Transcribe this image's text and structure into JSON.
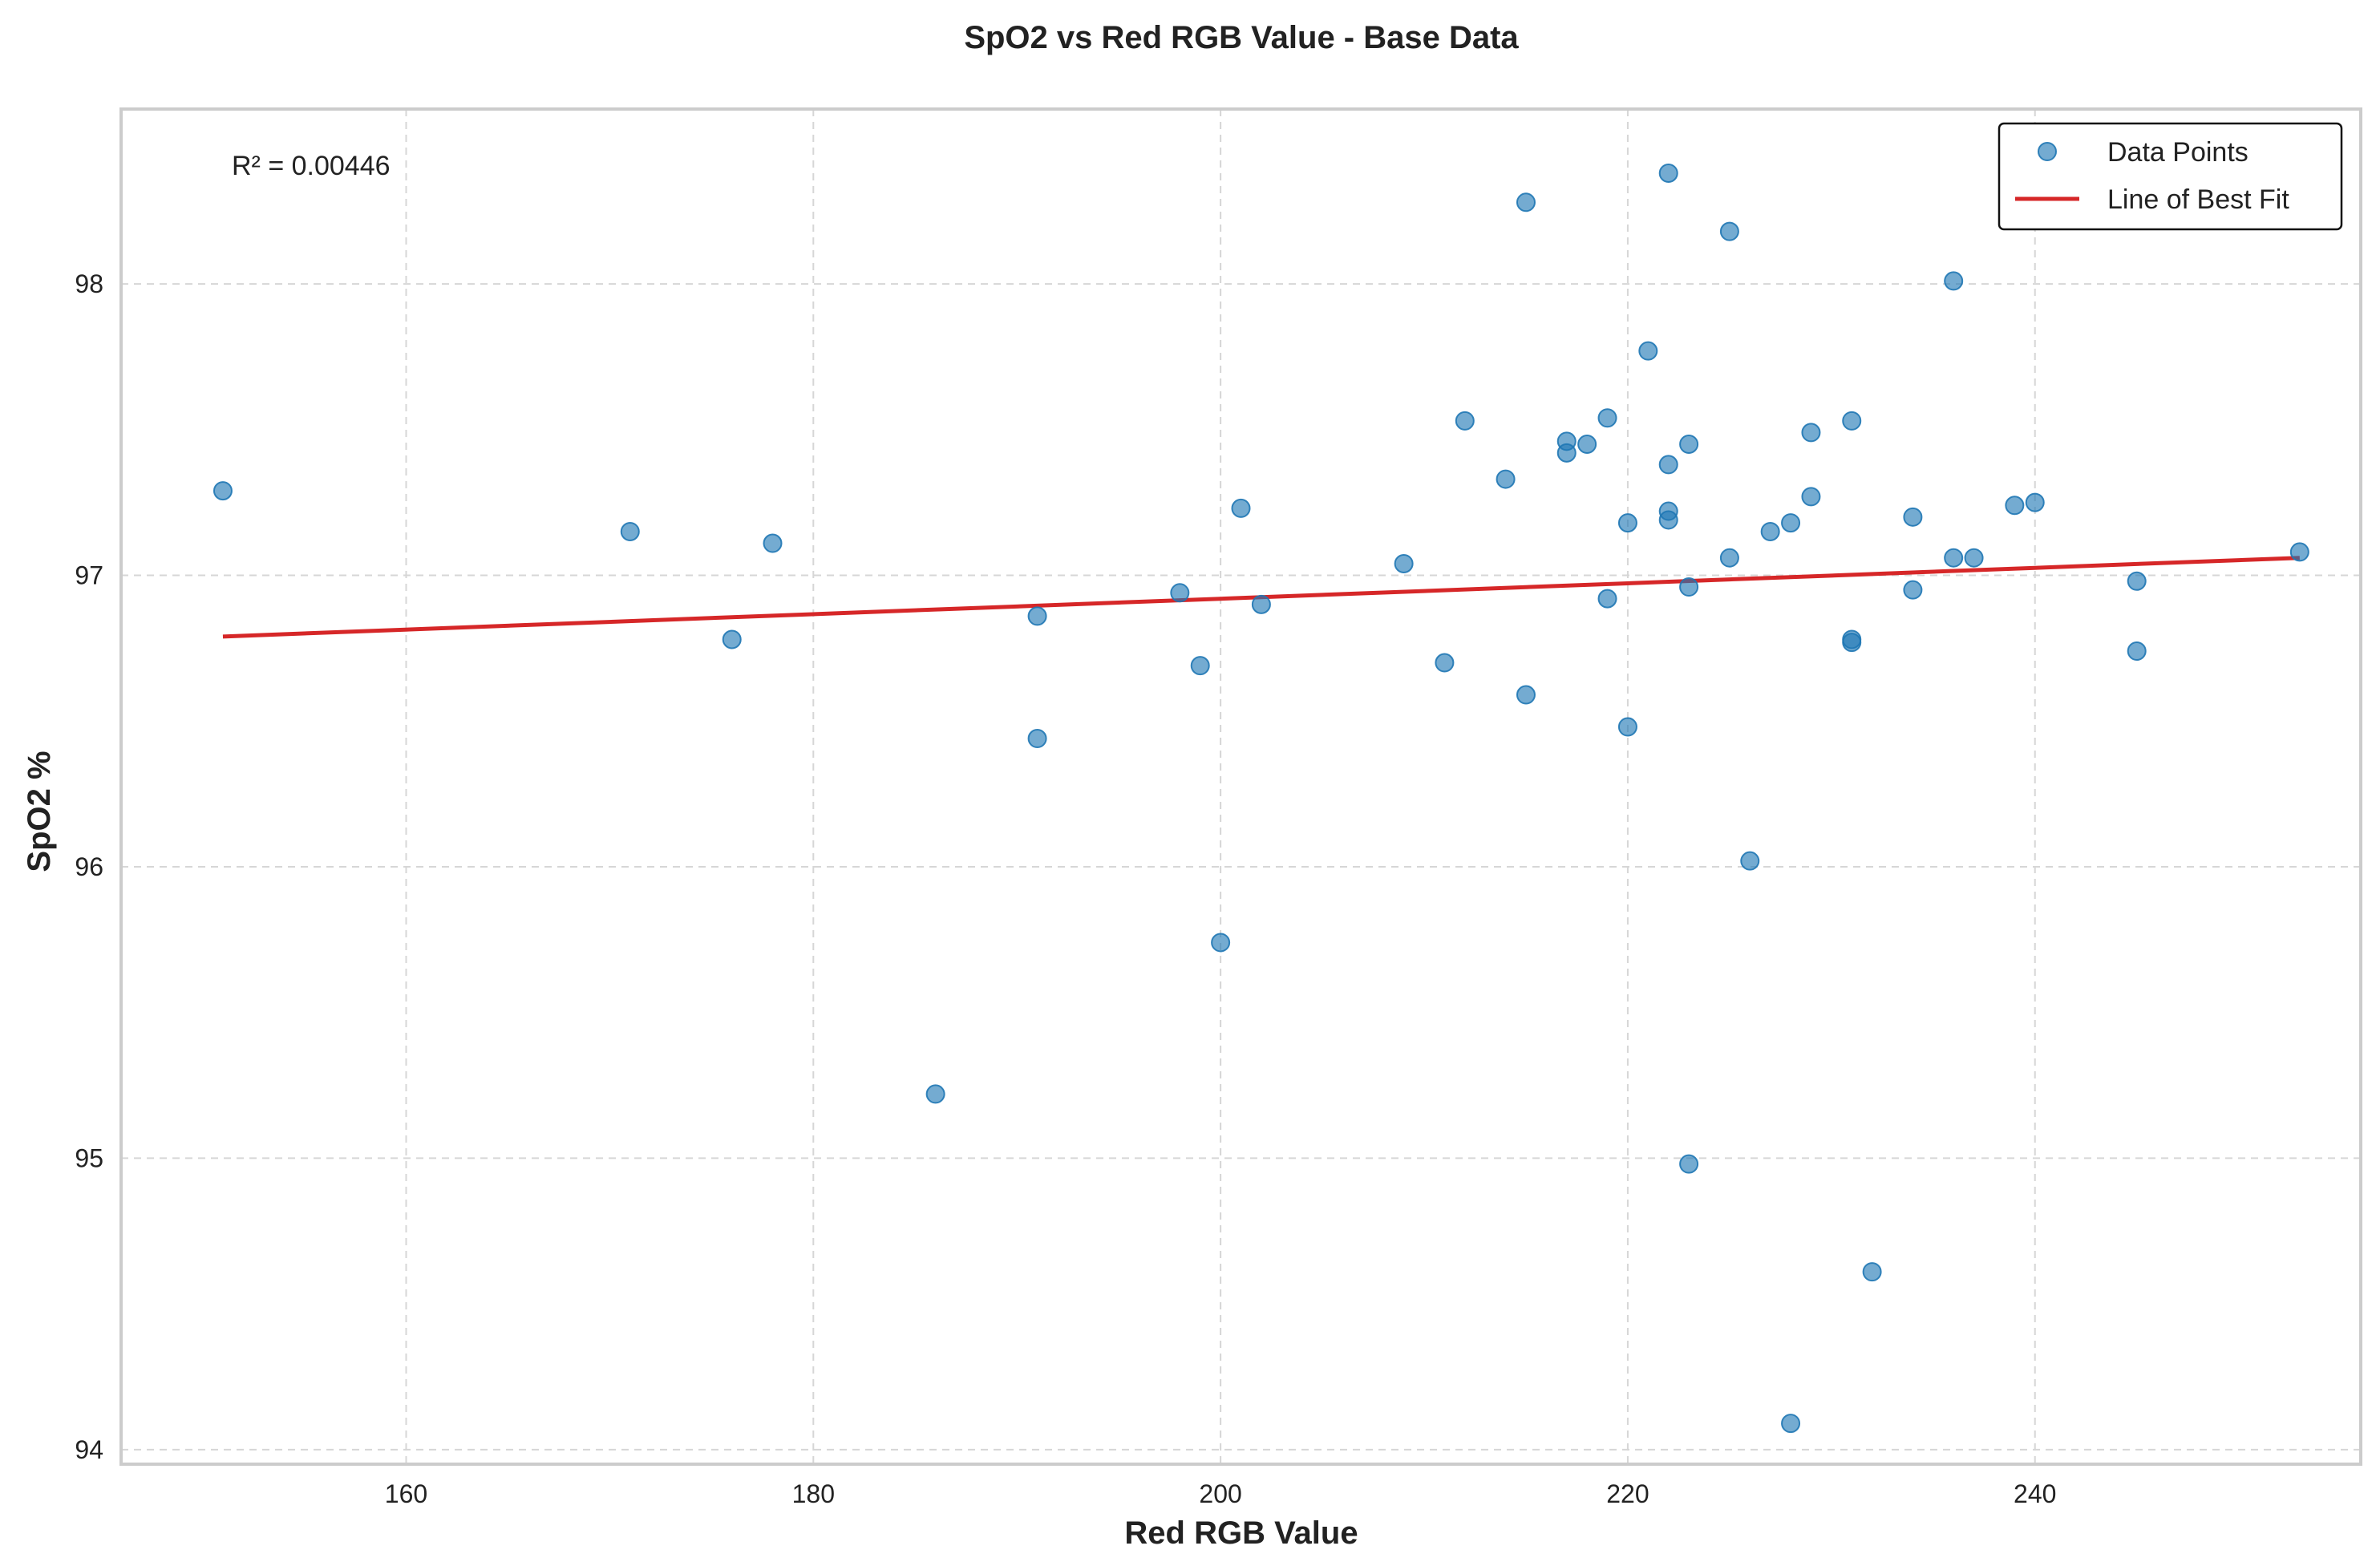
{
  "chart_data": {
    "type": "scatter",
    "title": "SpO2 vs Red RGB Value - Base Data",
    "xlabel": "Red RGB Value",
    "ylabel": "SpO2 %",
    "xlim": [
      146,
      256
    ],
    "ylim": [
      93.95,
      98.6
    ],
    "xticks": [
      160,
      180,
      200,
      220,
      240
    ],
    "yticks": [
      94,
      95,
      96,
      97,
      98
    ],
    "grid": true,
    "legend_position": "top-right",
    "annotation": "R² = 0.00446",
    "series": [
      {
        "name": "Data Points",
        "kind": "scatter",
        "color": "#1f77b4",
        "points": [
          [
            151,
            97.29
          ],
          [
            171,
            97.15
          ],
          [
            176,
            96.78
          ],
          [
            178,
            97.11
          ],
          [
            186,
            95.22
          ],
          [
            191,
            96.86
          ],
          [
            191,
            96.44
          ],
          [
            198,
            96.94
          ],
          [
            199,
            96.69
          ],
          [
            200,
            95.74
          ],
          [
            201,
            97.23
          ],
          [
            202,
            96.9
          ],
          [
            209,
            97.04
          ],
          [
            211,
            96.7
          ],
          [
            212,
            97.53
          ],
          [
            214,
            97.33
          ],
          [
            215,
            98.28
          ],
          [
            215,
            96.59
          ],
          [
            217,
            97.46
          ],
          [
            217,
            97.42
          ],
          [
            218,
            97.45
          ],
          [
            219,
            97.54
          ],
          [
            219,
            96.92
          ],
          [
            220,
            97.18
          ],
          [
            220,
            96.48
          ],
          [
            221,
            97.77
          ],
          [
            222,
            98.38
          ],
          [
            222,
            97.38
          ],
          [
            222,
            97.22
          ],
          [
            222,
            97.19
          ],
          [
            223,
            97.45
          ],
          [
            223,
            96.96
          ],
          [
            223,
            94.98
          ],
          [
            225,
            98.18
          ],
          [
            225,
            97.06
          ],
          [
            226,
            96.02
          ],
          [
            227,
            97.15
          ],
          [
            228,
            97.18
          ],
          [
            228,
            94.09
          ],
          [
            229,
            97.49
          ],
          [
            229,
            97.27
          ],
          [
            231,
            97.53
          ],
          [
            231,
            96.78
          ],
          [
            231,
            96.77
          ],
          [
            232,
            94.61
          ],
          [
            234,
            97.2
          ],
          [
            234,
            96.95
          ],
          [
            236,
            98.01
          ],
          [
            236,
            97.06
          ],
          [
            237,
            97.06
          ],
          [
            239,
            97.24
          ],
          [
            240,
            97.25
          ],
          [
            245,
            96.98
          ],
          [
            245,
            96.74
          ],
          [
            253,
            97.08
          ]
        ]
      },
      {
        "name": "Line of Best Fit",
        "kind": "line",
        "color": "#d62728",
        "points": [
          [
            151,
            96.79
          ],
          [
            253,
            97.06
          ]
        ]
      }
    ]
  }
}
